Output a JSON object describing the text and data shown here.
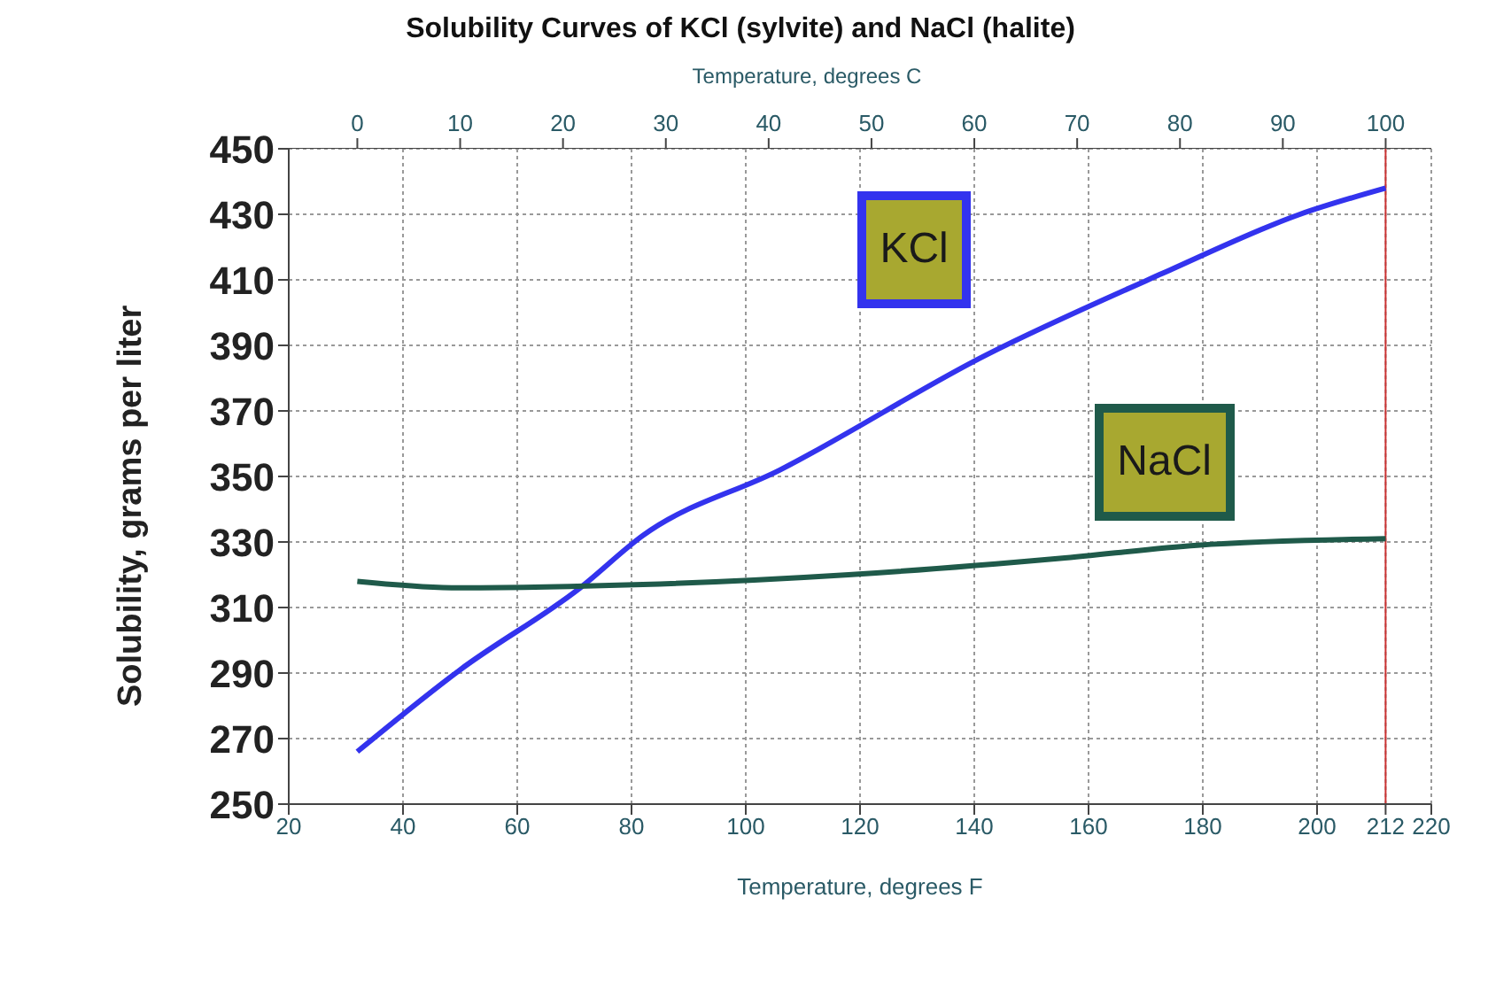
{
  "chart_data": {
    "type": "line",
    "title": "Solubility Curves of KCl (sylvite) and NaCl (halite)",
    "xlabel": "Temperature, degrees F",
    "x2label": "Temperature, degrees C",
    "ylabel": "Solubility, grams per liter",
    "xlim": [
      20,
      220
    ],
    "xticks": [
      20,
      40,
      60,
      80,
      100,
      120,
      140,
      160,
      180,
      200,
      212,
      220
    ],
    "x2lim": [
      -6.67,
      104.44
    ],
    "x2ticks": [
      0,
      10,
      20,
      30,
      40,
      50,
      60,
      70,
      80,
      90,
      100
    ],
    "ylim": [
      250,
      450
    ],
    "yticks": [
      250,
      270,
      290,
      310,
      330,
      350,
      370,
      390,
      410,
      430,
      450
    ],
    "grid": true,
    "marker": "none",
    "line_style": "solid",
    "ref_lines": [
      {
        "axis": "x",
        "value": 212,
        "color": "#cc3333"
      }
    ],
    "series": [
      {
        "name": "KCl",
        "color": "#3333ee",
        "x": [
          32,
          50,
          71,
          82,
          106,
          142,
          173,
          197,
          212
        ],
        "values": [
          266,
          291,
          316,
          332,
          352,
          387,
          412,
          430,
          438
        ]
      },
      {
        "name": "NaCl",
        "color": "#1f5a4a",
        "x": [
          32,
          50,
          82,
          118,
          155,
          179,
          212
        ],
        "values": [
          318,
          316,
          317,
          320,
          325,
          329,
          331
        ]
      }
    ]
  }
}
